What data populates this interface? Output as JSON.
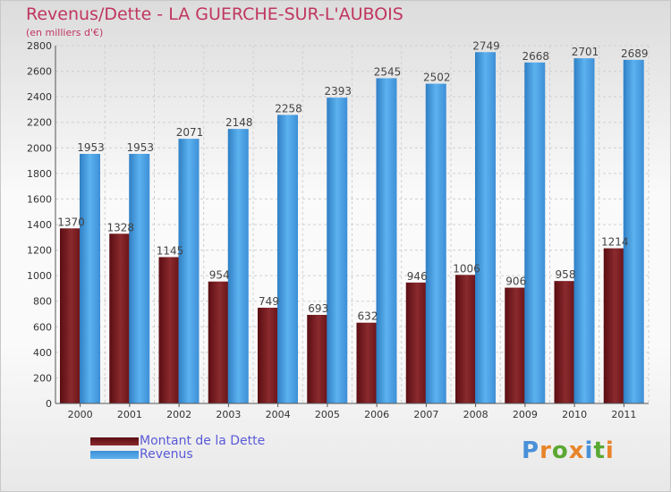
{
  "title": "Revenus/Dette - LA GUERCHE-SUR-L'AUBOIS",
  "subtitle": "(en milliers d'€)",
  "logo": "Proxiti",
  "colors": {
    "title": "#c0365f",
    "dette": "#7a1e22",
    "revenus": "#4fa6e6",
    "legend_text": "#5a5ad8"
  },
  "chart_data": {
    "type": "bar",
    "title": "Revenus/Dette - LA GUERCHE-SUR-L'AUBOIS",
    "ylabel": "(en milliers d'€)",
    "xlabel": "",
    "categories": [
      "2000",
      "2001",
      "2002",
      "2003",
      "2004",
      "2005",
      "2006",
      "2007",
      "2008",
      "2009",
      "2010",
      "2011"
    ],
    "series": [
      {
        "name": "Montant de la Dette",
        "values": [
          1370,
          1328,
          1145,
          954,
          749,
          693,
          632,
          946,
          1006,
          906,
          958,
          1214
        ]
      },
      {
        "name": "Revenus",
        "values": [
          1953,
          1953,
          2071,
          2148,
          2258,
          2393,
          2545,
          2502,
          2749,
          2668,
          2701,
          2689
        ]
      }
    ],
    "ylim": [
      0,
      2800
    ],
    "yticks": [
      0,
      200,
      400,
      600,
      800,
      1000,
      1200,
      1400,
      1600,
      1800,
      2000,
      2200,
      2400,
      2600,
      2800
    ],
    "grid": true,
    "legend": "bottom-left"
  }
}
